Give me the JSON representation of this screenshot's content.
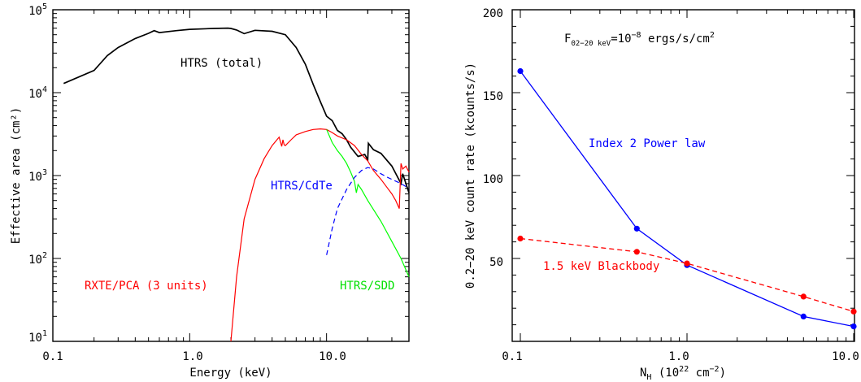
{
  "chart_data": [
    {
      "type": "line",
      "xlabel": "Energy (keV)",
      "ylabel": "Effective area (cm²)",
      "xscale": "log",
      "yscale": "log",
      "xlim": [
        0.1,
        40
      ],
      "ylim": [
        10,
        100000
      ],
      "x_ticks": [
        "0.1",
        "1.0",
        "10.0"
      ],
      "y_ticks": [
        {
          "base": "10",
          "exp": "1"
        },
        {
          "base": "10",
          "exp": "2"
        },
        {
          "base": "10",
          "exp": "3"
        },
        {
          "base": "10",
          "exp": "4"
        },
        {
          "base": "10",
          "exp": "5"
        }
      ],
      "series": [
        {
          "name": "HTRS (total)",
          "color": "#000000",
          "style": "solid",
          "x": [
            0.12,
            0.2,
            0.25,
            0.3,
            0.4,
            0.5,
            0.55,
            0.6,
            0.8,
            1.0,
            1.5,
            1.9,
            2.0,
            2.2,
            2.5,
            3.0,
            4.0,
            5.0,
            6.0,
            7.0,
            8.0,
            9.0,
            10.0,
            11.0,
            12.0,
            13.0,
            14.0,
            15.0,
            17.0,
            19.0,
            20.0,
            20.2,
            22.0,
            25.0,
            30.0,
            35.0,
            36.0,
            38.0,
            40.0
          ],
          "y": [
            12900,
            18500,
            28000,
            35000,
            45000,
            52000,
            56000,
            53000,
            56000,
            58000,
            59500,
            60000,
            59500,
            57000,
            51500,
            56500,
            55000,
            50000,
            35000,
            22000,
            12500,
            7800,
            5200,
            4600,
            3500,
            3200,
            2700,
            2200,
            1700,
            1800,
            1550,
            2450,
            2050,
            1850,
            1300,
            800,
            1050,
            800,
            620
          ]
        },
        {
          "name": "RXTE/PCA (3 units)",
          "color": "#ff0000",
          "style": "solid",
          "x": [
            2.0,
            2.2,
            2.5,
            3.0,
            3.5,
            4.0,
            4.5,
            4.7,
            4.8,
            4.9,
            5.0,
            5.5,
            6.0,
            7.0,
            8.0,
            9.0,
            10.0,
            11.0,
            12.0,
            14.0,
            16.0,
            18.0,
            20.0,
            22.0,
            25.0,
            28.0,
            30.0,
            32.0,
            34.0,
            35.0,
            36.0,
            38.0,
            40.0
          ],
          "y": [
            10,
            60,
            300,
            900,
            1600,
            2300,
            2900,
            2250,
            2700,
            2350,
            2300,
            2700,
            3100,
            3400,
            3600,
            3650,
            3600,
            3300,
            3000,
            2700,
            2300,
            1800,
            1500,
            1150,
            900,
            700,
            600,
            500,
            400,
            1400,
            1200,
            1300,
            1100
          ]
        },
        {
          "name": "HTRS/SDD",
          "color": "#00ff00",
          "style": "solid",
          "x": [
            10.0,
            11.0,
            12.0,
            13.0,
            14.0,
            15.0,
            16.0,
            16.5,
            17.0,
            18.0,
            20.0,
            25.0,
            30.0,
            35.0,
            40.0
          ],
          "y": [
            3600,
            2500,
            2000,
            1700,
            1400,
            1100,
            850,
            620,
            780,
            680,
            500,
            280,
            160,
            100,
            60
          ]
        },
        {
          "name": "HTRS/CdTe",
          "color": "#0000ff",
          "style": "dashed",
          "x": [
            10.0,
            11.0,
            12.0,
            14.0,
            16.0,
            18.0,
            20.0,
            22.0,
            25.0,
            28.0,
            30.0,
            35.0,
            40.0
          ],
          "y": [
            110,
            230,
            400,
            680,
            950,
            1150,
            1250,
            1200,
            1050,
            950,
            900,
            800,
            700
          ]
        }
      ]
    },
    {
      "type": "line",
      "title": "F₀₂₋₂₀ keV=10⁻⁸ ergs/s/cm²",
      "xlabel": "N_H (10²² cm⁻²)",
      "ylabel": "0.2−20 keV count rate (kcounts/s)",
      "xscale": "log",
      "xlim": [
        0.1,
        10.0
      ],
      "ylim": [
        0,
        200
      ],
      "x_ticks": [
        "0.1",
        "1.0",
        "10.0"
      ],
      "y_ticks": [
        "50",
        "100",
        "150",
        "200"
      ],
      "series": [
        {
          "name": "Index 2 Power law",
          "color": "#0000ff",
          "style": "solid",
          "x": [
            0.1,
            0.5,
            1.0,
            5.0,
            10.0
          ],
          "y": [
            163,
            68,
            46,
            15,
            9
          ]
        },
        {
          "name": "1.5 keV Blackbody",
          "color": "#ff0000",
          "style": "dashed",
          "x": [
            0.1,
            0.5,
            1.0,
            5.0,
            10.0
          ],
          "y": [
            62,
            54,
            47,
            27,
            18
          ]
        }
      ]
    }
  ],
  "left_labels": {
    "xlabel": "Energy (keV)",
    "ylabel": "Effective area (cm²)",
    "htrs_total": "HTRS (total)",
    "htrs_cdte": "HTRS/CdTe",
    "rxte": "RXTE/PCA (3 units)",
    "htrs_sdd": "HTRS/SDD"
  },
  "right_labels": {
    "flux_f": "F",
    "flux_sub": "02−20 keV",
    "flux_mid": "=10",
    "flux_exp": "−8",
    "flux_unit": " ergs/s/cm",
    "flux_unit_exp": "2",
    "xlabel_n": "N",
    "xlabel_sub": "H",
    "xlabel_open": " (10",
    "xlabel_exp": "22",
    "xlabel_cm": " cm",
    "xlabel_cm_exp": "−2",
    "xlabel_close": ")",
    "ylabel": "0.2−20 keV count rate (kcounts/s)",
    "powerlaw": "Index 2 Power law",
    "blackbody": "1.5 keV Blackbody"
  },
  "colors": {
    "black": "#000000",
    "red": "#ff0000",
    "green": "#00ff00",
    "blue": "#0000ff"
  }
}
